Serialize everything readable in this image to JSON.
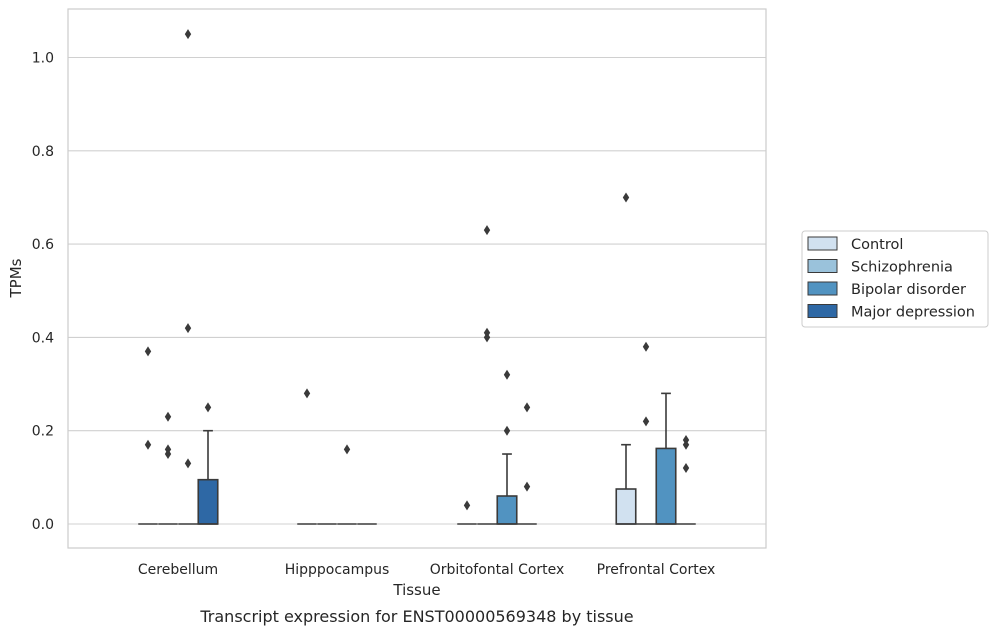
{
  "caption": "Transcript expression for ENST00000569348 by tissue",
  "chart_data": {
    "type": "box",
    "xlabel": "Tissue",
    "ylabel": "TPMs",
    "ylim": [
      -0.05,
      1.1
    ],
    "yticks": [
      0.0,
      0.2,
      0.4,
      0.6,
      0.8,
      1.0
    ],
    "ytick_labels": [
      "0.0",
      "0.2",
      "0.4",
      "0.6",
      "0.8",
      "1.0"
    ],
    "grid": "horizontal",
    "legend_position": "right",
    "categories": [
      "Cerebellum",
      "Hipppocampus",
      "Orbitofontal Cortex",
      "Prefrontal Cortex"
    ],
    "series": [
      {
        "name": "Control",
        "color": "#d1e1f0",
        "boxes": [
          {
            "q1": 0,
            "median": 0,
            "q3": 0,
            "whisker_low": 0,
            "whisker_high": 0,
            "outliers": [
              0.37,
              0.17
            ]
          },
          {
            "q1": 0,
            "median": 0,
            "q3": 0,
            "whisker_low": 0,
            "whisker_high": 0,
            "outliers": [
              0.28
            ]
          },
          {
            "q1": 0,
            "median": 0,
            "q3": 0,
            "whisker_low": 0,
            "whisker_high": 0,
            "outliers": [
              0.04
            ]
          },
          {
            "q1": 0,
            "median": 0,
            "q3": 0.075,
            "whisker_low": 0,
            "whisker_high": 0.17,
            "outliers": [
              0.7
            ]
          }
        ]
      },
      {
        "name": "Schizophrenia",
        "color": "#9ac2db",
        "boxes": [
          {
            "q1": 0,
            "median": 0,
            "q3": 0,
            "whisker_low": 0,
            "whisker_high": 0,
            "outliers": [
              0.23,
              0.16,
              0.15
            ]
          },
          {
            "q1": 0,
            "median": 0,
            "q3": 0,
            "whisker_low": 0,
            "whisker_high": 0,
            "outliers": []
          },
          {
            "q1": 0,
            "median": 0,
            "q3": 0,
            "whisker_low": 0,
            "whisker_high": 0,
            "outliers": [
              0.63,
              0.41,
              0.4
            ]
          },
          {
            "q1": 0,
            "median": 0,
            "q3": 0,
            "whisker_low": 0,
            "whisker_high": 0,
            "outliers": [
              0.38,
              0.22
            ]
          }
        ]
      },
      {
        "name": "Bipolar disorder",
        "color": "#5193c1",
        "boxes": [
          {
            "q1": 0,
            "median": 0,
            "q3": 0,
            "whisker_low": 0,
            "whisker_high": 0,
            "outliers": [
              1.05,
              0.42,
              0.13
            ]
          },
          {
            "q1": 0,
            "median": 0,
            "q3": 0,
            "whisker_low": 0,
            "whisker_high": 0,
            "outliers": [
              0.16
            ]
          },
          {
            "q1": 0,
            "median": 0,
            "q3": 0.06,
            "whisker_low": 0,
            "whisker_high": 0.15,
            "outliers": [
              0.32,
              0.2
            ]
          },
          {
            "q1": 0,
            "median": 0,
            "q3": 0.162,
            "whisker_low": 0,
            "whisker_high": 0.28,
            "outliers": []
          }
        ]
      },
      {
        "name": "Major depression",
        "color": "#2e68a5",
        "boxes": [
          {
            "q1": 0,
            "median": 0,
            "q3": 0.095,
            "whisker_low": 0,
            "whisker_high": 0.2,
            "outliers": [
              0.25
            ]
          },
          {
            "q1": 0,
            "median": 0,
            "q3": 0,
            "whisker_low": 0,
            "whisker_high": 0,
            "outliers": []
          },
          {
            "q1": 0,
            "median": 0,
            "q3": 0,
            "whisker_low": 0,
            "whisker_high": 0,
            "outliers": [
              0.25,
              0.08
            ]
          },
          {
            "q1": 0,
            "median": 0,
            "q3": 0,
            "whisker_low": 0,
            "whisker_high": 0,
            "outliers": [
              0.18,
              0.17,
              0.12
            ]
          }
        ]
      }
    ]
  }
}
